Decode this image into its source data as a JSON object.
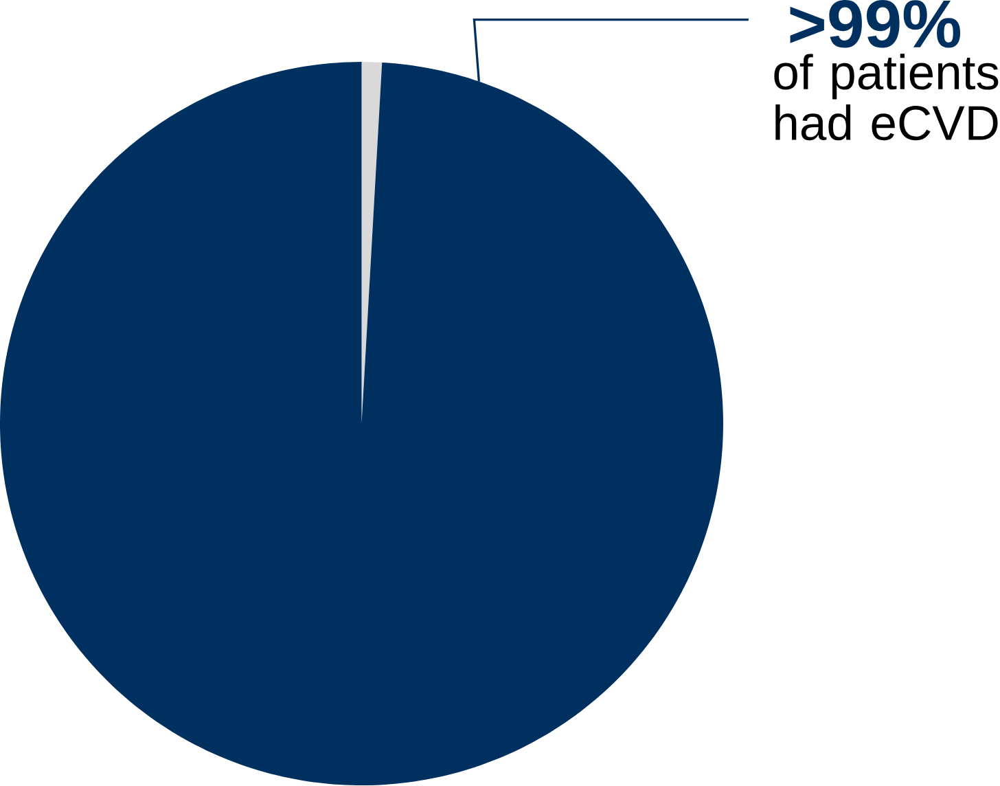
{
  "chart_data": {
    "type": "pie",
    "categories": [
      null,
      null
    ],
    "values": [
      0.9,
      99.1
    ],
    "colors": [
      "#d9d9d9",
      "#00305f"
    ],
    "value_labels": [
      null,
      ">99%"
    ],
    "annotations": [
      "of patients had eCVD"
    ]
  }
}
